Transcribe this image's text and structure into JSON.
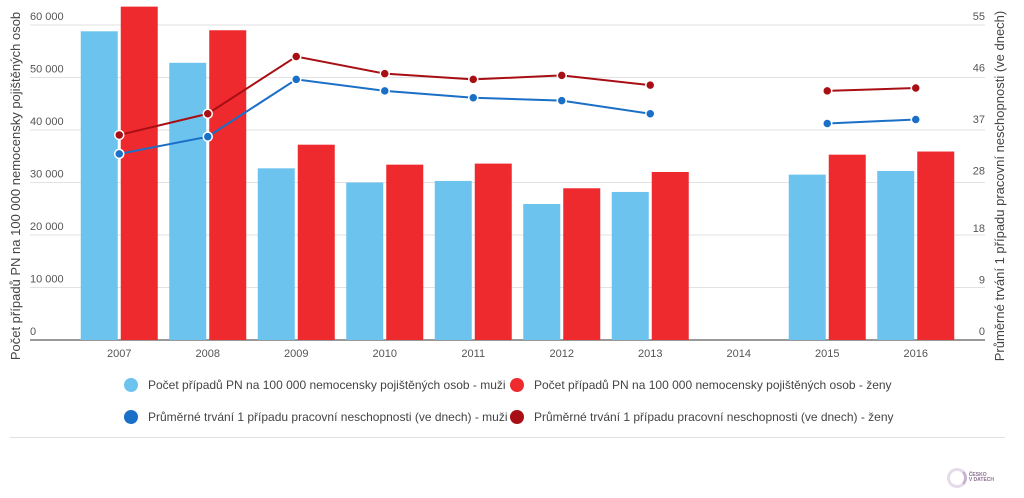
{
  "chart_data": {
    "type": "bar",
    "categories": [
      "2007",
      "2008",
      "2009",
      "2010",
      "2011",
      "2012",
      "2013",
      "2014",
      "2015",
      "2016"
    ],
    "bar_series": [
      {
        "name": "Počet případů PN na 100 000 nemocensky pojištěných osob - muži",
        "color": "#6cc3ee",
        "values": [
          58800,
          52800,
          32700,
          30000,
          30300,
          25900,
          28200,
          null,
          31500,
          32200
        ]
      },
      {
        "name": "Počet případů PN na 100 000 nemocensky pojištěných osob - ženy",
        "color": "#ee2a2e",
        "values": [
          63500,
          59000,
          37200,
          33400,
          33600,
          28900,
          32000,
          null,
          35300,
          35900
        ]
      }
    ],
    "line_series": [
      {
        "name": "Průměrné trvání 1 případu pracovní neschopnosti (ve dnech) - muži",
        "color": "#1a6fc6",
        "values": [
          32.5,
          35.5,
          45.5,
          43.5,
          42.3,
          41.8,
          39.5,
          null,
          37.8,
          38.5
        ]
      },
      {
        "name": "Průměrné trvání 1 případu pracovní neschopnosti (ve dnech) - ženy",
        "color": "#a80f14",
        "values": [
          35.8,
          39.5,
          49.5,
          46.5,
          45.5,
          46.2,
          44.5,
          null,
          43.5,
          44.0
        ]
      }
    ],
    "y_left": {
      "label": "Počet případů PN na 100 000 nemocensky pojištěných osob",
      "min": 0,
      "max": 60000,
      "ticks": [
        0,
        10000,
        20000,
        30000,
        40000,
        50000,
        60000
      ],
      "tick_labels": [
        "0",
        "10 000",
        "20 000",
        "30 000",
        "40 000",
        "50 000",
        "60 000"
      ]
    },
    "y_right": {
      "label": "Průměrné trvání 1 případu pracovní neschopnosti (ve dnech)",
      "min": 0,
      "max": 55,
      "ticks": [
        0,
        9,
        18,
        28,
        37,
        46,
        55
      ],
      "tick_labels": [
        "0",
        "9",
        "18",
        "28",
        "37",
        "46",
        "55"
      ]
    },
    "legend_position": "bottom",
    "grid": true
  },
  "brand": {
    "line1": "ČESKO",
    "line2": "V DATECH"
  }
}
